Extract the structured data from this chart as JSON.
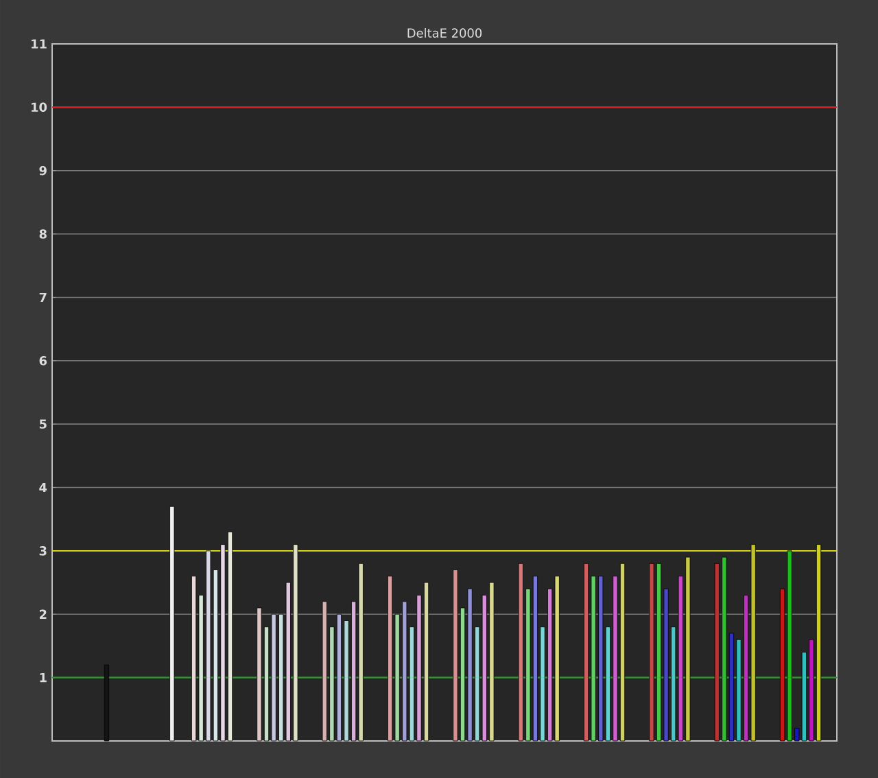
{
  "chart_data": {
    "type": "bar",
    "title": "DeltaE 2000",
    "categories": [
      null,
      null,
      null,
      null,
      null,
      null,
      null,
      null,
      null,
      null,
      null,
      null,
      null,
      null,
      null,
      null,
      null,
      null,
      null,
      null,
      null,
      null,
      null,
      null,
      null,
      null,
      null,
      null,
      null,
      null,
      null,
      null,
      null,
      null,
      null,
      null,
      null,
      null,
      null,
      null,
      null,
      null,
      null,
      null,
      null,
      null,
      null,
      null,
      null,
      null,
      null,
      null,
      null,
      null,
      null,
      null,
      null,
      null,
      null,
      null,
      null,
      null,
      null,
      null,
      null,
      null,
      null,
      null,
      null,
      null,
      null,
      null,
      null,
      null,
      null,
      null,
      null,
      null,
      null,
      null,
      null,
      null,
      null,
      null,
      null,
      null,
      null,
      null,
      null,
      null,
      null,
      null,
      null,
      null,
      null,
      null,
      null,
      null,
      null,
      null,
      null,
      null,
      null,
      null,
      null,
      null,
      null,
      null
    ],
    "values": [
      null,
      null,
      null,
      null,
      null,
      null,
      null,
      1.2,
      null,
      null,
      null,
      null,
      null,
      null,
      null,
      null,
      3.7,
      null,
      null,
      2.6,
      2.3,
      3.0,
      2.7,
      3.1,
      3.3,
      null,
      null,
      null,
      2.1,
      1.8,
      2.0,
      2.0,
      2.5,
      3.1,
      null,
      null,
      null,
      2.2,
      1.8,
      2.0,
      1.9,
      2.2,
      2.8,
      null,
      null,
      null,
      2.6,
      2.0,
      2.2,
      1.8,
      2.3,
      2.5,
      null,
      null,
      null,
      2.7,
      2.1,
      2.4,
      1.8,
      2.3,
      2.5,
      null,
      null,
      null,
      2.8,
      2.4,
      2.6,
      1.8,
      2.4,
      2.6,
      null,
      null,
      null,
      2.8,
      2.6,
      2.6,
      1.8,
      2.6,
      2.8,
      null,
      null,
      null,
      2.8,
      2.8,
      2.4,
      1.8,
      2.6,
      2.9,
      null,
      null,
      null,
      2.8,
      2.9,
      1.7,
      1.6,
      2.3,
      3.1,
      null,
      null,
      null,
      2.4,
      3.0,
      0.2,
      1.4,
      1.6,
      3.1,
      null,
      null
    ],
    "colors": [
      null,
      null,
      null,
      null,
      null,
      null,
      null,
      "#141414",
      null,
      null,
      null,
      null,
      null,
      null,
      null,
      null,
      "#f0f0f0",
      null,
      null,
      "#e8d8d8",
      "#d8e8d8",
      "#d8d8e8",
      "#d8e8e8",
      "#e8d8e8",
      "#e8e8d8",
      null,
      null,
      null,
      "#e0c8c8",
      "#c8e0c8",
      "#c8c8e0",
      "#c8e0e0",
      "#e0c8e0",
      "#e0e0c8",
      null,
      null,
      null,
      "#d8b0b0",
      "#b0d8b0",
      "#b0b0d8",
      "#b0d8d8",
      "#d8b0d8",
      "#d8d8b0",
      null,
      null,
      null,
      "#d8a0a0",
      "#a0d8a0",
      "#a0a0d8",
      "#a0d8d8",
      "#d8a0d8",
      "#d8d8a0",
      null,
      null,
      null,
      "#d89090",
      "#90d890",
      "#9090d8",
      "#90d8d8",
      "#d890d8",
      "#d8d890",
      null,
      null,
      null,
      "#d87878",
      "#78d878",
      "#7878d8",
      "#78d8d8",
      "#d878d8",
      "#d8d878",
      null,
      null,
      null,
      "#d06060",
      "#60d060",
      "#6060d0",
      "#60d0d0",
      "#d060d0",
      "#d0d060",
      null,
      null,
      null,
      "#c84848",
      "#48c848",
      "#4848c8",
      "#48c8c8",
      "#c848c8",
      "#c8c848",
      null,
      null,
      null,
      "#c03030",
      "#30c030",
      "#3030c0",
      "#30c0c0",
      "#c030c0",
      "#c0c030",
      null,
      null,
      null,
      "#c81818",
      "#18c018",
      "#1818c0",
      "#30c0c0",
      "#c018c0",
      "#d0d018",
      null,
      null
    ],
    "ylim": [
      0,
      11
    ],
    "yticks": [
      1,
      2,
      3,
      4,
      5,
      6,
      7,
      8,
      9,
      10,
      11
    ],
    "grid": "y",
    "ref_lines": [
      {
        "axis": "y",
        "value": 10,
        "color": "#e02020"
      },
      {
        "axis": "y",
        "value": 3,
        "color": "#e0e020"
      },
      {
        "axis": "y",
        "value": 1,
        "color": "#20a020"
      }
    ]
  }
}
